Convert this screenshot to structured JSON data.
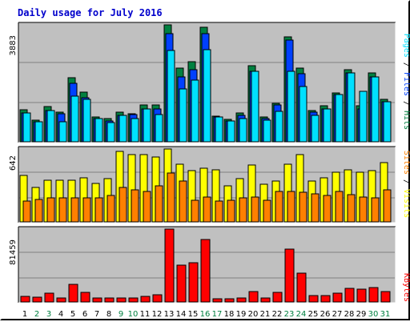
{
  "title": "Daily usage for July 2016",
  "colors": {
    "background": "#ffffff",
    "panel": "#c0c0c0",
    "title_text": "#0000cc",
    "hits": "#008040",
    "files": "#0040ff",
    "pages": "#00e0ff",
    "visits": "#ffff00",
    "sites": "#ff8000",
    "kbytes": "#ff0000",
    "weekend_label": "#008040",
    "weekday_label": "#000000"
  },
  "right_labels": {
    "top": [
      {
        "text": "Pages",
        "color": "#00e0ff"
      },
      {
        "text": " / ",
        "color": "#000000"
      },
      {
        "text": "Files",
        "color": "#0040ff"
      },
      {
        "text": " / ",
        "color": "#000000"
      },
      {
        "text": "Hits",
        "color": "#008040"
      }
    ],
    "middle": [
      {
        "text": "Sites",
        "color": "#ff8000"
      },
      {
        "text": " / ",
        "color": "#000000"
      },
      {
        "text": "Visits",
        "color": "#ffff00"
      }
    ],
    "bottom": [
      {
        "text": "KBytes",
        "color": "#ff0000"
      }
    ]
  },
  "chart_data": [
    {
      "type": "bar",
      "panel": "hits-files-pages",
      "ylabel": "3883",
      "ylim": [
        0,
        3883
      ],
      "categories": [
        "1",
        "2",
        "3",
        "4",
        "5",
        "6",
        "7",
        "8",
        "9",
        "10",
        "11",
        "12",
        "13",
        "14",
        "15",
        "16",
        "17",
        "18",
        "19",
        "20",
        "21",
        "22",
        "23",
        "24",
        "25",
        "26",
        "27",
        "28",
        "29",
        "30",
        "31"
      ],
      "weekend_days": [
        "2",
        "3",
        "9",
        "10",
        "16",
        "17",
        "23",
        "24",
        "30",
        "31"
      ],
      "series": [
        {
          "name": "Hits",
          "values": [
            1070,
            720,
            1170,
            980,
            2130,
            1650,
            820,
            760,
            980,
            930,
            1230,
            1230,
            3883,
            2450,
            2650,
            3800,
            850,
            750,
            960,
            2520,
            820,
            1280,
            3480,
            2450,
            1050,
            1190,
            1630,
            2400,
            1200,
            2300,
            1400
          ]
        },
        {
          "name": "Files",
          "values": [
            950,
            670,
            1040,
            940,
            1950,
            1460,
            770,
            700,
            880,
            900,
            1080,
            1080,
            3600,
            2150,
            2400,
            3600,
            820,
            700,
            890,
            2350,
            770,
            1230,
            3380,
            2250,
            990,
            1080,
            1560,
            2300,
            1100,
            2150,
            1330
          ]
        },
        {
          "name": "Pages",
          "values": [
            950,
            670,
            1040,
            660,
            1520,
            1420,
            770,
            650,
            880,
            780,
            1080,
            900,
            3020,
            1750,
            2040,
            3070,
            820,
            700,
            780,
            2350,
            720,
            1010,
            2340,
            1840,
            880,
            1080,
            1560,
            2300,
            1680,
            2150,
            1330
          ]
        }
      ]
    },
    {
      "type": "bar",
      "panel": "visits-sites",
      "ylabel": "642",
      "ylim": [
        0,
        642
      ],
      "categories": [
        "1",
        "2",
        "3",
        "4",
        "5",
        "6",
        "7",
        "8",
        "9",
        "10",
        "11",
        "12",
        "13",
        "14",
        "15",
        "16",
        "17",
        "18",
        "19",
        "20",
        "21",
        "22",
        "23",
        "24",
        "25",
        "26",
        "27",
        "28",
        "29",
        "30",
        "31"
      ],
      "series": [
        {
          "name": "Visits",
          "values": [
            410,
            300,
            370,
            370,
            370,
            390,
            340,
            380,
            620,
            590,
            590,
            570,
            642,
            510,
            450,
            470,
            460,
            320,
            380,
            500,
            330,
            360,
            510,
            590,
            360,
            390,
            440,
            460,
            440,
            450,
            520
          ]
        },
        {
          "name": "Sites",
          "values": [
            180,
            200,
            210,
            210,
            210,
            210,
            210,
            230,
            300,
            280,
            270,
            320,
            430,
            360,
            190,
            220,
            180,
            190,
            210,
            220,
            190,
            270,
            270,
            260,
            250,
            230,
            270,
            240,
            220,
            210,
            280
          ]
        }
      ]
    },
    {
      "type": "bar",
      "panel": "kbytes",
      "ylabel": "81459",
      "ylim": [
        0,
        81459
      ],
      "categories": [
        "1",
        "2",
        "3",
        "4",
        "5",
        "6",
        "7",
        "8",
        "9",
        "10",
        "11",
        "12",
        "13",
        "14",
        "15",
        "16",
        "17",
        "18",
        "19",
        "20",
        "21",
        "22",
        "23",
        "24",
        "25",
        "26",
        "27",
        "28",
        "29",
        "30",
        "31"
      ],
      "series": [
        {
          "name": "KBytes",
          "values": [
            6000,
            5000,
            9600,
            4400,
            19600,
            10800,
            4400,
            4400,
            4400,
            4400,
            6400,
            8000,
            81459,
            41000,
            43700,
            70000,
            3800,
            4000,
            4400,
            12000,
            4400,
            10400,
            59000,
            32000,
            7000,
            7000,
            9800,
            15600,
            14000,
            16200,
            12000
          ]
        }
      ]
    }
  ]
}
